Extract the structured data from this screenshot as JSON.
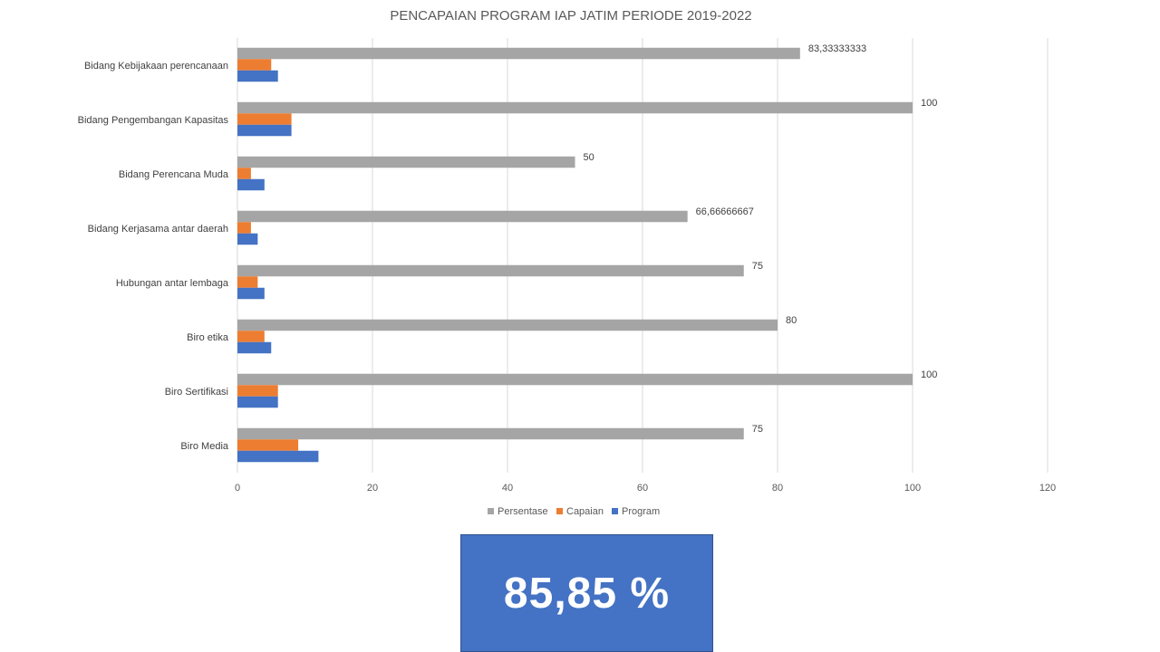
{
  "chart_data": {
    "type": "bar",
    "orientation": "horizontal",
    "title": "PENCAPAIAN PROGRAM IAP JATIM PERIODE 2019-2022",
    "categories": [
      "Bidang Kebijakaan perencanaan",
      "Bidang Pengembangan Kapasitas",
      "Bidang Perencana Muda",
      "Bidang Kerjasama antar daerah",
      "Hubungan antar lembaga",
      "Biro etika",
      "Biro Sertifikasi",
      "Biro Media"
    ],
    "series": [
      {
        "name": "Persentase",
        "color": "#A5A5A5",
        "values": [
          83.33333333,
          100,
          50,
          66.66666667,
          75,
          80,
          100,
          75
        ],
        "labels": [
          "83,33333333",
          "100",
          "50",
          "66,66666667",
          "75",
          "80",
          "100",
          "75"
        ]
      },
      {
        "name": "Capaian",
        "color": "#ED7D31",
        "values": [
          5,
          8,
          2,
          2,
          3,
          4,
          6,
          9
        ]
      },
      {
        "name": "Program",
        "color": "#4472C4",
        "values": [
          6,
          8,
          4,
          3,
          4,
          5,
          6,
          12
        ]
      }
    ],
    "xlim": [
      0,
      120
    ],
    "xticks": [
      "0",
      "20",
      "40",
      "60",
      "80",
      "100",
      "120"
    ],
    "xlabel": "",
    "ylabel": "",
    "grid": "vertical",
    "legend": "bottom",
    "legend_entries": [
      "Persentase",
      "Capaian",
      "Program"
    ]
  },
  "summary": {
    "value_text": "85,85 %",
    "background": "#4472C4"
  }
}
